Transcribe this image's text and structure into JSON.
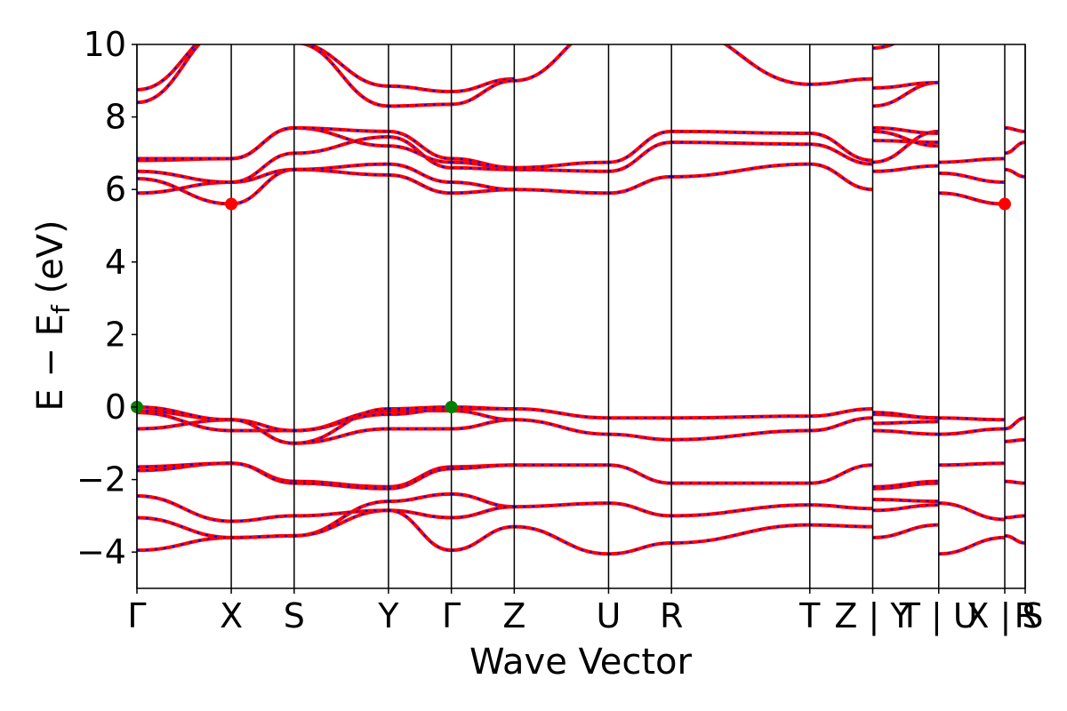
{
  "chart_data": {
    "type": "line",
    "title": "",
    "xlabel": "Wave Vector",
    "ylabel": "E − E_f (eV)",
    "ylabel_parts": {
      "main": "E − E",
      "sub": "f",
      "unit": " (eV)"
    },
    "ylim": [
      -5,
      10
    ],
    "yticks": [
      -4,
      -2,
      0,
      2,
      4,
      6,
      8,
      10
    ],
    "ytick_labels": [
      "−4",
      "−2",
      "0",
      "2",
      "4",
      "6",
      "8",
      "10"
    ],
    "xlim": [
      0,
      14.125
    ],
    "xticks": [
      0,
      1.5,
      2.5,
      4,
      5,
      6,
      7.5,
      8.5,
      10.7,
      11.7,
      12.75,
      13.8,
      14.125
    ],
    "xtick_labels": [
      "Γ",
      "X",
      "S",
      "Y",
      "Γ",
      "Z",
      "U",
      "R",
      "T",
      "Z | Y",
      "T | U",
      "X | S",
      "R"
    ],
    "vertical_lines": [
      0,
      1.5,
      2.5,
      4,
      5,
      6,
      7.5,
      8.5,
      10.7,
      11.7,
      12.75,
      13.8,
      14.125
    ],
    "grid": false,
    "legend": "none",
    "colors": {
      "band_main": "#ff0000",
      "band_dash": "#0000ff",
      "vbm_marker": "#008000",
      "cbm_marker": "#ff0000"
    },
    "segments": [
      {
        "x0": 0,
        "x1": 1.5,
        "bands": [
          [
            -3.95,
            -3.6
          ],
          [
            -3.05,
            -3.6
          ],
          [
            -2.45,
            -3.15
          ],
          [
            -1.75,
            -1.55
          ],
          [
            -1.65,
            -1.55
          ],
          [
            -0.6,
            -0.35
          ],
          [
            -0.15,
            -0.65
          ],
          [
            -0.1,
            -0.35
          ],
          [
            0.0,
            -0.35
          ],
          [
            5.9,
            6.2
          ],
          [
            6.3,
            5.6
          ],
          [
            6.5,
            6.2
          ],
          [
            6.8,
            6.85
          ],
          [
            6.85,
            6.85
          ],
          [
            8.4,
            10.5
          ],
          [
            8.75,
            10.5
          ]
        ]
      },
      {
        "x0": 1.5,
        "x1": 2.5,
        "bands": [
          [
            -3.6,
            -3.55
          ],
          [
            -3.6,
            -3.55
          ],
          [
            -3.15,
            -3.0
          ],
          [
            -1.55,
            -2.05
          ],
          [
            -1.55,
            -2.1
          ],
          [
            -0.35,
            -1.0
          ],
          [
            -0.65,
            -0.65
          ],
          [
            -0.35,
            -0.65
          ],
          [
            -0.35,
            -1.0
          ],
          [
            5.6,
            6.55
          ],
          [
            6.2,
            6.55
          ],
          [
            6.2,
            7.0
          ],
          [
            6.85,
            7.7
          ],
          [
            6.85,
            7.7
          ]
        ]
      },
      {
        "x0": 2.5,
        "x1": 4,
        "bands": [
          [
            -3.55,
            -2.6
          ],
          [
            -3.55,
            -2.85
          ],
          [
            -3.0,
            -2.85
          ],
          [
            -2.05,
            -2.2
          ],
          [
            -2.1,
            -2.25
          ],
          [
            -1.0,
            -0.6
          ],
          [
            -0.65,
            -0.1
          ],
          [
            -0.65,
            -0.2
          ],
          [
            -1.0,
            -0.05
          ],
          [
            6.55,
            6.4
          ],
          [
            6.55,
            6.7
          ],
          [
            7.0,
            7.45
          ],
          [
            7.7,
            7.2
          ],
          [
            7.7,
            7.6
          ],
          [
            10.05,
            8.85
          ],
          [
            10.05,
            8.3
          ]
        ]
      },
      {
        "x0": 4,
        "x1": 5,
        "bands": [
          [
            -2.6,
            -2.4
          ],
          [
            -2.85,
            -3.05
          ],
          [
            -2.85,
            -3.95
          ],
          [
            -2.2,
            -1.65
          ],
          [
            -2.25,
            -1.7
          ],
          [
            -0.6,
            -0.6
          ],
          [
            -0.1,
            -0.1
          ],
          [
            -0.2,
            -0.05
          ],
          [
            -0.05,
            0.0
          ],
          [
            6.4,
            5.9
          ],
          [
            6.7,
            6.2
          ],
          [
            7.45,
            6.6
          ],
          [
            7.2,
            6.75
          ],
          [
            7.6,
            6.85
          ],
          [
            8.85,
            8.7
          ],
          [
            8.3,
            8.35
          ]
        ]
      },
      {
        "x0": 5,
        "x1": 6,
        "bands": [
          [
            -2.4,
            -2.75
          ],
          [
            -3.05,
            -2.75
          ],
          [
            -3.95,
            -3.3
          ],
          [
            -1.65,
            -1.6
          ],
          [
            -1.7,
            -1.6
          ],
          [
            -0.6,
            -0.35
          ],
          [
            -0.1,
            -0.35
          ],
          [
            -0.05,
            -0.05
          ],
          [
            0.0,
            -0.05
          ],
          [
            5.9,
            6.0
          ],
          [
            6.2,
            6.0
          ],
          [
            6.6,
            6.55
          ],
          [
            6.75,
            6.6
          ],
          [
            6.85,
            6.6
          ],
          [
            8.7,
            9.05
          ],
          [
            8.35,
            9.0
          ]
        ]
      },
      {
        "x0": 6,
        "x1": 7.5,
        "bands": [
          [
            -2.75,
            -2.65
          ],
          [
            -3.3,
            -4.05
          ],
          [
            -1.6,
            -1.6
          ],
          [
            -0.35,
            -0.75
          ],
          [
            -0.05,
            -0.3
          ],
          [
            6.0,
            5.9
          ],
          [
            6.55,
            6.5
          ],
          [
            6.6,
            6.75
          ],
          [
            9.0,
            10.5
          ]
        ]
      },
      {
        "x0": 7.5,
        "x1": 8.5,
        "bands": [
          [
            -2.65,
            -3.0
          ],
          [
            -4.05,
            -3.75
          ],
          [
            -1.6,
            -2.1
          ],
          [
            -0.75,
            -0.9
          ],
          [
            -0.3,
            -0.3
          ],
          [
            5.9,
            6.35
          ],
          [
            6.5,
            7.3
          ],
          [
            6.75,
            7.6
          ]
        ]
      },
      {
        "x0": 8.5,
        "x1": 10.7,
        "bands": [
          [
            -3.0,
            -2.7
          ],
          [
            -3.75,
            -3.25
          ],
          [
            -2.1,
            -2.1
          ],
          [
            -0.9,
            -0.65
          ],
          [
            -0.3,
            -0.25
          ],
          [
            6.35,
            6.7
          ],
          [
            7.3,
            7.25
          ],
          [
            7.6,
            7.55
          ],
          [
            10.5,
            8.9
          ]
        ]
      },
      {
        "x0": 10.7,
        "x1": 11.7,
        "bands": [
          [
            -2.7,
            -2.8
          ],
          [
            -3.25,
            -3.3
          ],
          [
            -2.1,
            -1.6
          ],
          [
            -0.65,
            -0.3
          ],
          [
            -0.25,
            -0.05
          ],
          [
            6.7,
            6.0
          ],
          [
            7.25,
            6.7
          ],
          [
            7.55,
            6.8
          ],
          [
            8.9,
            9.05
          ]
        ]
      },
      {
        "x0": 11.7,
        "x1": 12.75,
        "bands": [
          [
            -3.6,
            -3.25
          ],
          [
            -2.85,
            -2.7
          ],
          [
            -2.55,
            -2.6
          ],
          [
            -2.25,
            -2.1
          ],
          [
            -2.2,
            -2.05
          ],
          [
            -0.65,
            -0.75
          ],
          [
            -0.45,
            -0.4
          ],
          [
            -0.2,
            -0.3
          ],
          [
            -0.15,
            -0.3
          ],
          [
            6.5,
            6.65
          ],
          [
            6.75,
            7.6
          ],
          [
            7.35,
            7.3
          ],
          [
            7.6,
            7.2
          ],
          [
            7.7,
            7.55
          ],
          [
            8.3,
            8.95
          ],
          [
            8.8,
            8.95
          ],
          [
            9.9,
            10.5
          ]
        ]
      },
      {
        "x0": 12.75,
        "x1": 13.8,
        "bands": [
          [
            -4.05,
            -3.6
          ],
          [
            -2.65,
            -3.1
          ],
          [
            -1.6,
            -1.55
          ],
          [
            -0.75,
            -0.6
          ],
          [
            -0.3,
            -0.35
          ],
          [
            5.9,
            5.6
          ],
          [
            6.45,
            6.2
          ],
          [
            6.75,
            6.85
          ]
        ]
      },
      {
        "x0": 13.8,
        "x1": 14.125,
        "bands": [
          [
            -3.55,
            -3.75
          ],
          [
            -3.05,
            -3.0
          ],
          [
            -2.05,
            -2.1
          ],
          [
            -0.95,
            -0.9
          ],
          [
            -0.6,
            -0.3
          ],
          [
            6.55,
            6.35
          ],
          [
            7.0,
            7.3
          ],
          [
            7.7,
            7.6
          ]
        ]
      }
    ],
    "vbm_points": [
      [
        0,
        0.0
      ],
      [
        5,
        0.0
      ]
    ],
    "cbm_points": [
      [
        1.5,
        5.6
      ],
      [
        13.8,
        5.6
      ]
    ]
  }
}
